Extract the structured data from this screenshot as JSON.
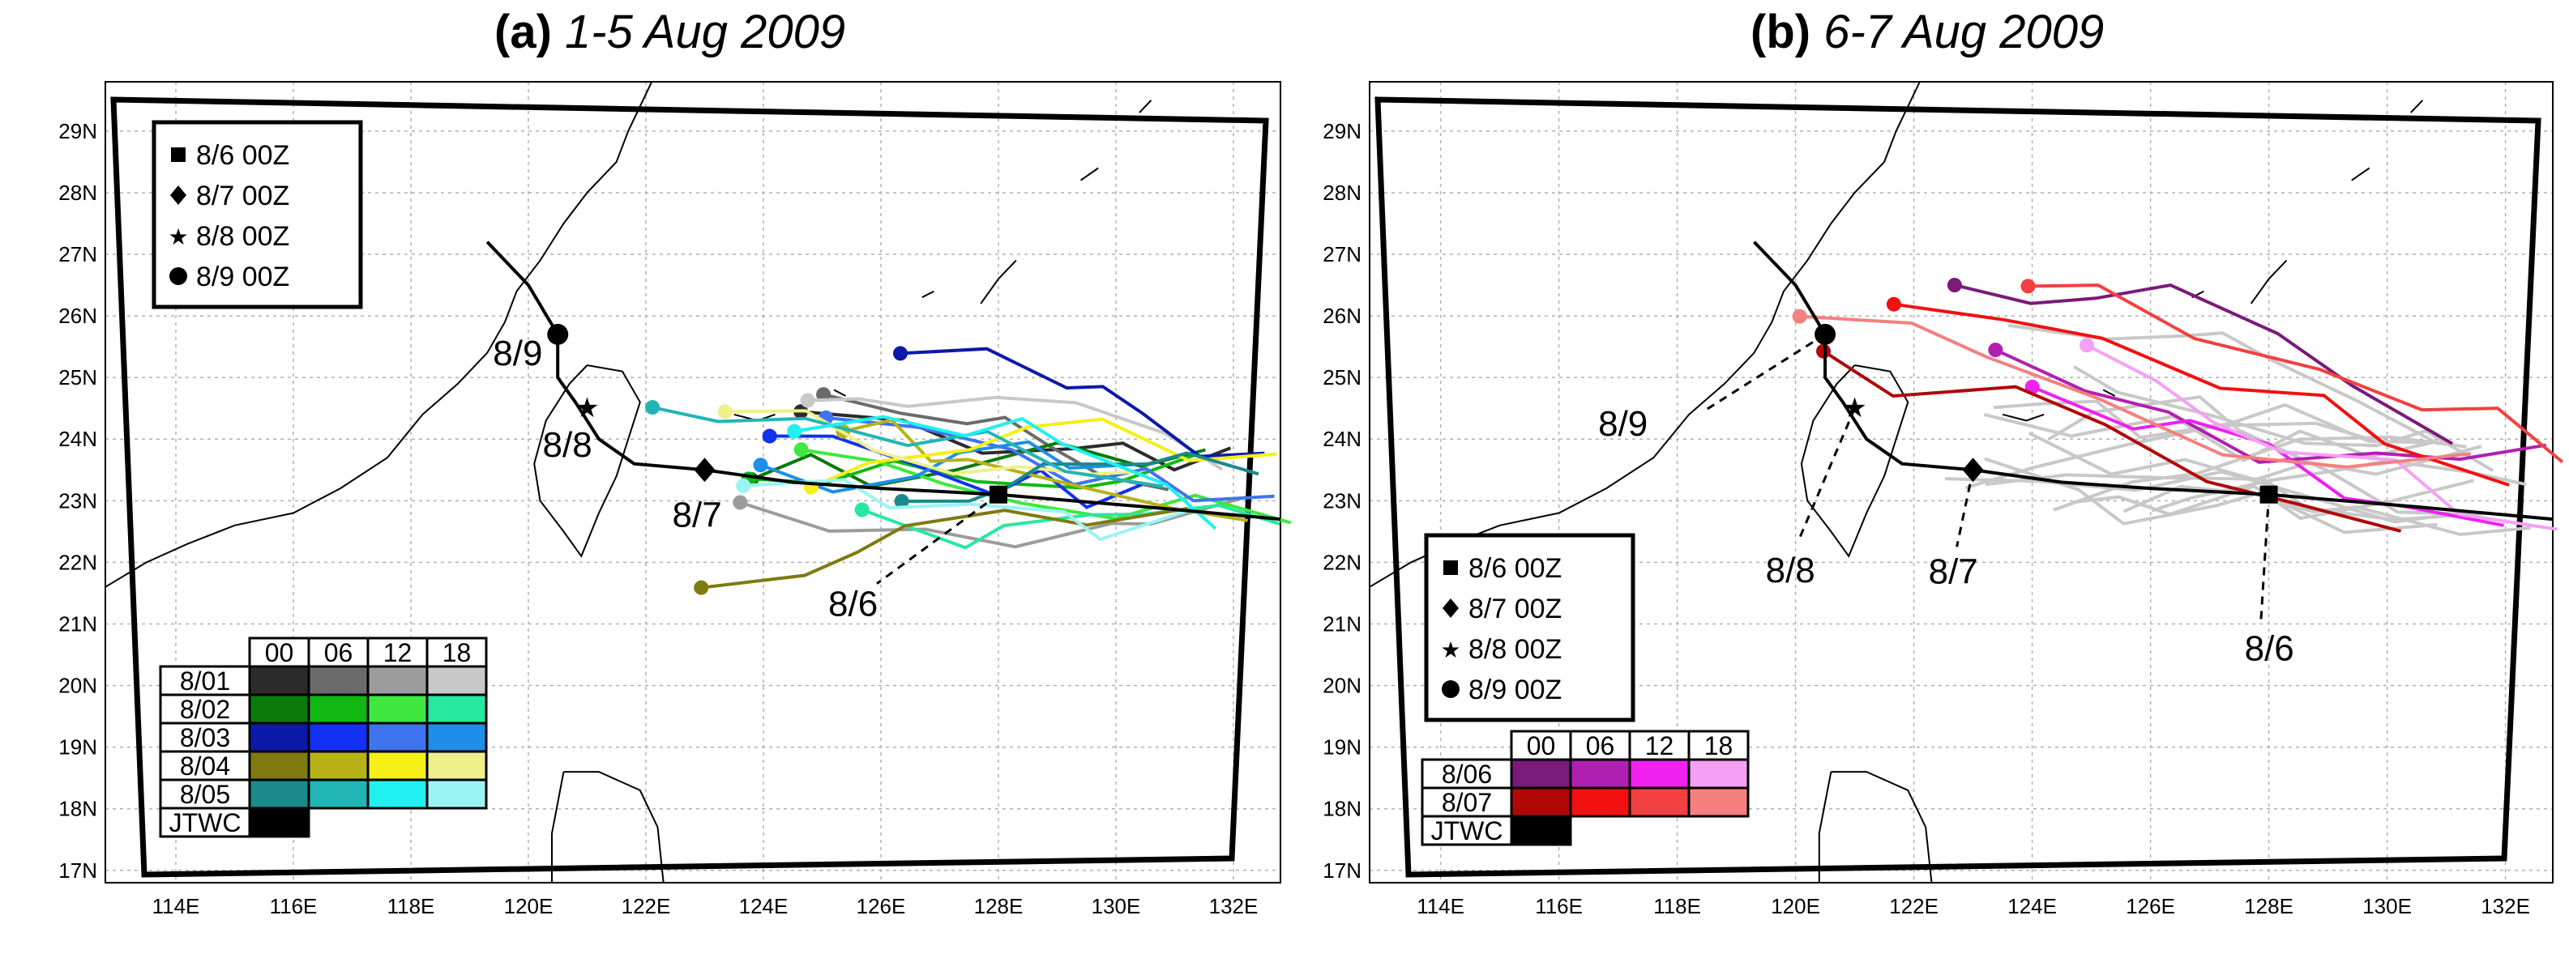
{
  "panels": [
    {
      "tag": "(a)",
      "title": "1-5 Aug 2009",
      "legend_symbols": [
        "8/6 00Z",
        "8/7 00Z",
        "8/8 00Z",
        "8/9 00Z"
      ],
      "date_labels": [
        "8/9",
        "8/8",
        "8/7",
        "8/6"
      ],
      "color_table": {
        "header": [
          "00",
          "06",
          "12",
          "18"
        ],
        "rows": [
          {
            "label": "8/01",
            "colors": [
              "#2b2b2b",
              "#6b6b6b",
              "#9c9c9c",
              "#c8c8c8"
            ]
          },
          {
            "label": "8/02",
            "colors": [
              "#0a7a0a",
              "#12b812",
              "#3ee83e",
              "#27e8a0"
            ]
          },
          {
            "label": "8/03",
            "colors": [
              "#0b1aa8",
              "#1231f2",
              "#3f74f0",
              "#1e8ee8"
            ]
          },
          {
            "label": "8/04",
            "colors": [
              "#7f7a10",
              "#b8b218",
              "#f4f018",
              "#f0f08a"
            ]
          },
          {
            "label": "8/05",
            "colors": [
              "#1a8a8a",
              "#22b5b5",
              "#20f0f0",
              "#9af4f4"
            ]
          }
        ],
        "jtwc_label": "JTWC"
      }
    },
    {
      "tag": "(b)",
      "title": "6-7 Aug 2009",
      "legend_symbols": [
        "8/6 00Z",
        "8/7 00Z",
        "8/8 00Z",
        "8/9 00Z"
      ],
      "date_labels": [
        "8/9",
        "8/8",
        "8/7",
        "8/6"
      ],
      "color_table": {
        "header": [
          "00",
          "06",
          "12",
          "18"
        ],
        "rows": [
          {
            "label": "8/06",
            "colors": [
              "#7a1a7a",
              "#b020b0",
              "#f020f0",
              "#f4a0f4"
            ]
          },
          {
            "label": "8/07",
            "colors": [
              "#b00808",
              "#f21010",
              "#f24040",
              "#f48080"
            ]
          }
        ],
        "jtwc_label": "JTWC"
      }
    }
  ],
  "lat_labels": [
    "29N",
    "28N",
    "27N",
    "26N",
    "25N",
    "24N",
    "23N",
    "22N",
    "21N",
    "20N",
    "19N",
    "18N",
    "17N"
  ],
  "lon_labels": [
    "114E",
    "116E",
    "118E",
    "120E",
    "122E",
    "124E",
    "126E",
    "128E",
    "130E",
    "132E"
  ],
  "colors": {
    "jtwc": "#000000",
    "grid": "#b0b0b0",
    "coast": "#000000",
    "gray_track": "#c8c8c8"
  }
}
